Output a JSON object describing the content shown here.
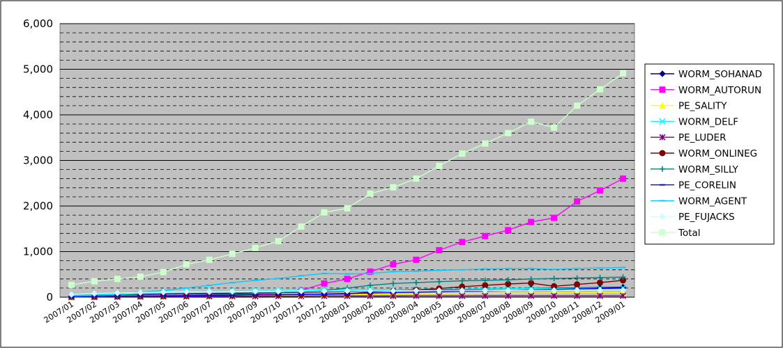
{
  "chart_data": {
    "type": "line",
    "title": "",
    "xlabel": "",
    "ylabel": "",
    "ylim": [
      0,
      6000
    ],
    "y_ticks": [
      "0",
      "1,000",
      "2,000",
      "3,000",
      "4,000",
      "5,000",
      "6,000"
    ],
    "plot_background": "#c0c0c0",
    "grid": "major solid, minor dashed",
    "legend_position": "right",
    "categories": [
      "2007/01",
      "2007/02",
      "2007/03",
      "2007/04",
      "2007/05",
      "2007/06",
      "2007/07",
      "2007/08",
      "2007/09",
      "2007/10",
      "2007/11",
      "2007/12",
      "2008/01",
      "2008/02",
      "2008/03",
      "2008/04",
      "2008/05",
      "2008/06",
      "2008/07",
      "2008/08",
      "2008/09",
      "2008/10",
      "2008/11",
      "2008/12",
      "2009/01"
    ],
    "series": [
      {
        "name": "WORM_SOHANAD",
        "color": "#000080",
        "marker": "diamond",
        "values": [
          20,
          40,
          50,
          60,
          70,
          75,
          80,
          85,
          90,
          100,
          110,
          120,
          130,
          140,
          140,
          150,
          160,
          170,
          175,
          185,
          190,
          200,
          205,
          210,
          220
        ]
      },
      {
        "name": "WORM_AUTORUN",
        "color": "#ff00ff",
        "marker": "square",
        "values": [
          5,
          10,
          15,
          20,
          25,
          35,
          45,
          55,
          65,
          90,
          150,
          300,
          400,
          560,
          720,
          820,
          1030,
          1210,
          1340,
          1470,
          1650,
          1740,
          2100,
          2340,
          2600
        ]
      },
      {
        "name": "PE_SALITY",
        "color": "#ffff00",
        "marker": "triangle",
        "values": [
          10,
          15,
          20,
          25,
          30,
          35,
          38,
          40,
          45,
          50,
          55,
          60,
          65,
          70,
          70,
          75,
          80,
          82,
          85,
          88,
          90,
          95,
          97,
          100,
          100
        ]
      },
      {
        "name": "WORM_DELF",
        "color": "#00ffff",
        "marker": "x",
        "values": [
          30,
          45,
          60,
          80,
          100,
          120,
          130,
          140,
          150,
          150,
          155,
          160,
          165,
          170,
          170,
          175,
          180,
          180,
          185,
          185,
          190,
          190,
          195,
          195,
          200
        ]
      },
      {
        "name": "PE_LUDER",
        "color": "#800080",
        "marker": "asterisk",
        "values": [
          5,
          8,
          10,
          12,
          15,
          15,
          18,
          20,
          20,
          22,
          22,
          25,
          25,
          25,
          25,
          28,
          28,
          28,
          30,
          30,
          30,
          30,
          30,
          30,
          30
        ]
      },
      {
        "name": "WORM_ONLINEG",
        "color": "#800000",
        "marker": "circle",
        "values": [
          10,
          15,
          20,
          25,
          30,
          35,
          40,
          45,
          50,
          55,
          60,
          65,
          70,
          120,
          140,
          160,
          190,
          230,
          260,
          290,
          310,
          240,
          280,
          320,
          370
        ]
      },
      {
        "name": "WORM_SILLY",
        "color": "#008080",
        "marker": "plus",
        "values": [
          5,
          10,
          15,
          20,
          30,
          40,
          50,
          60,
          80,
          100,
          120,
          150,
          200,
          260,
          300,
          320,
          340,
          360,
          370,
          380,
          400,
          410,
          420,
          430,
          440
        ]
      },
      {
        "name": "PE_CORELIN",
        "color": "#0000ff",
        "marker": "dash",
        "values": [
          10,
          15,
          20,
          25,
          30,
          35,
          40,
          45,
          50,
          55,
          60,
          70,
          80,
          90,
          100,
          110,
          120,
          130,
          140,
          150,
          160,
          170,
          180,
          190,
          200
        ]
      },
      {
        "name": "WORM_AGENT",
        "color": "#00ccff",
        "marker": "dash",
        "values": [
          40,
          60,
          80,
          110,
          150,
          200,
          260,
          320,
          370,
          410,
          470,
          520,
          510,
          520,
          560,
          570,
          590,
          600,
          620,
          630,
          630,
          610,
          630,
          640,
          650
        ]
      },
      {
        "name": "PE_FUJACKS",
        "color": "#ccffff",
        "marker": "diamond-open",
        "values": [
          60,
          80,
          90,
          100,
          110,
          120,
          120,
          125,
          130,
          130,
          135,
          135,
          140,
          140,
          140,
          145,
          145,
          145,
          150,
          150,
          150,
          150,
          155,
          155,
          155
        ]
      },
      {
        "name": "Total",
        "color": "#ccffcc",
        "marker": "square",
        "values": [
          270,
          350,
          400,
          450,
          550,
          720,
          820,
          950,
          1080,
          1230,
          1550,
          1860,
          1950,
          2270,
          2410,
          2600,
          2880,
          3150,
          3370,
          3600,
          3850,
          3720,
          4200,
          4560,
          4910
        ]
      }
    ]
  }
}
